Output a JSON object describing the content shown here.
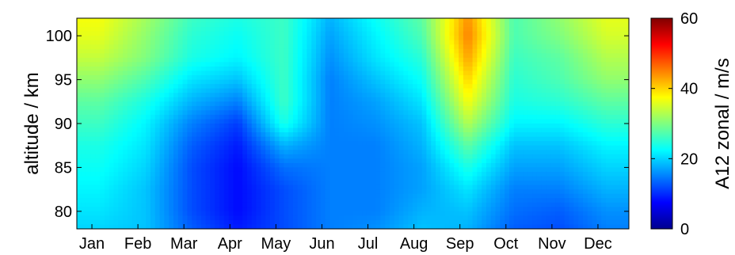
{
  "chart_data": {
    "type": "heatmap",
    "title": "",
    "xlabel": "",
    "ylabel": "altitude / km",
    "colorbar_label": "A12 zonal / m/s",
    "colormap": "jet",
    "x_categories": [
      "Jan",
      "Feb",
      "Mar",
      "Apr",
      "May",
      "Jun",
      "Jul",
      "Aug",
      "Sep",
      "Oct",
      "Nov",
      "Dec"
    ],
    "y_ticks": [
      80,
      85,
      90,
      95,
      100
    ],
    "ylim": [
      78,
      102
    ],
    "colorbar_ticks": [
      0,
      20,
      40,
      60
    ],
    "clim": [
      0,
      60
    ],
    "month_centers": [
      0.5,
      1.5,
      2.5,
      3.5,
      4.5,
      5.5,
      6.5,
      7.5,
      8.5,
      9.5,
      10.5,
      11.5
    ],
    "altitude_levels": [
      78,
      80,
      82.5,
      85,
      87.5,
      90,
      92.5,
      95,
      97.5,
      100,
      102
    ],
    "z": [
      [
        20,
        19,
        13,
        9,
        12,
        15,
        16,
        19,
        18,
        13,
        12,
        15
      ],
      [
        21,
        19,
        12,
        8,
        12,
        15,
        15,
        18,
        19,
        14,
        13,
        16
      ],
      [
        22,
        19,
        12,
        8,
        12,
        15,
        15,
        17,
        21,
        15,
        15,
        18
      ],
      [
        23,
        20,
        12,
        8,
        14,
        15,
        15,
        17,
        24,
        17,
        17,
        20
      ],
      [
        24,
        21,
        13,
        9,
        18,
        15,
        15,
        18,
        28,
        19,
        19,
        22
      ],
      [
        26,
        22,
        15,
        11,
        24,
        15,
        16,
        19,
        33,
        22,
        22,
        25
      ],
      [
        28,
        24,
        18,
        15,
        26,
        15,
        17,
        21,
        37,
        24,
        25,
        28
      ],
      [
        31,
        27,
        21,
        19,
        26,
        15,
        19,
        23,
        40,
        25,
        27,
        31
      ],
      [
        34,
        30,
        24,
        22,
        26,
        16,
        21,
        25,
        43,
        26,
        28,
        33
      ],
      [
        36,
        31,
        25,
        23,
        26,
        17,
        22,
        27,
        45,
        27,
        30,
        35
      ],
      [
        37,
        32,
        26,
        24,
        26,
        18,
        23,
        28,
        44,
        27,
        31,
        36
      ]
    ]
  }
}
